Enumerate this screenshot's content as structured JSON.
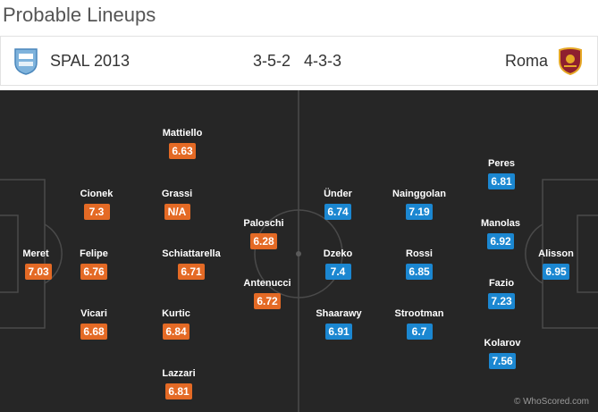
{
  "page_title": "Probable Lineups",
  "match": {
    "home_team": "SPAL 2013",
    "away_team": "Roma",
    "home_formation": "3-5-2",
    "away_formation": "4-3-3"
  },
  "colors": {
    "home_rating": "#e46a25",
    "away_rating": "#1b87d1",
    "pitch": "#262626"
  },
  "home_players": [
    {
      "name": "Meret",
      "rating": "7.03"
    },
    {
      "name": "Cionek",
      "rating": "7.3"
    },
    {
      "name": "Felipe",
      "rating": "6.76"
    },
    {
      "name": "Vicari",
      "rating": "6.68"
    },
    {
      "name": "Mattiello",
      "rating": "6.63"
    },
    {
      "name": "Grassi",
      "rating": "N/A"
    },
    {
      "name": "Schiattarella",
      "rating": "6.71"
    },
    {
      "name": "Kurtic",
      "rating": "6.84"
    },
    {
      "name": "Lazzari",
      "rating": "6.81"
    },
    {
      "name": "Paloschi",
      "rating": "6.28"
    },
    {
      "name": "Antenucci",
      "rating": "6.72"
    }
  ],
  "away_players": [
    {
      "name": "Ünder",
      "rating": "6.74"
    },
    {
      "name": "Dzeko",
      "rating": "7.4"
    },
    {
      "name": "Shaarawy",
      "rating": "6.91"
    },
    {
      "name": "Nainggolan",
      "rating": "7.19"
    },
    {
      "name": "Rossi",
      "rating": "6.85"
    },
    {
      "name": "Strootman",
      "rating": "6.7"
    },
    {
      "name": "Peres",
      "rating": "6.81"
    },
    {
      "name": "Manolas",
      "rating": "6.92"
    },
    {
      "name": "Fazio",
      "rating": "7.23"
    },
    {
      "name": "Kolarov",
      "rating": "7.56"
    },
    {
      "name": "Alisson",
      "rating": "6.95"
    }
  ],
  "watermark": "© WhoScored.com"
}
